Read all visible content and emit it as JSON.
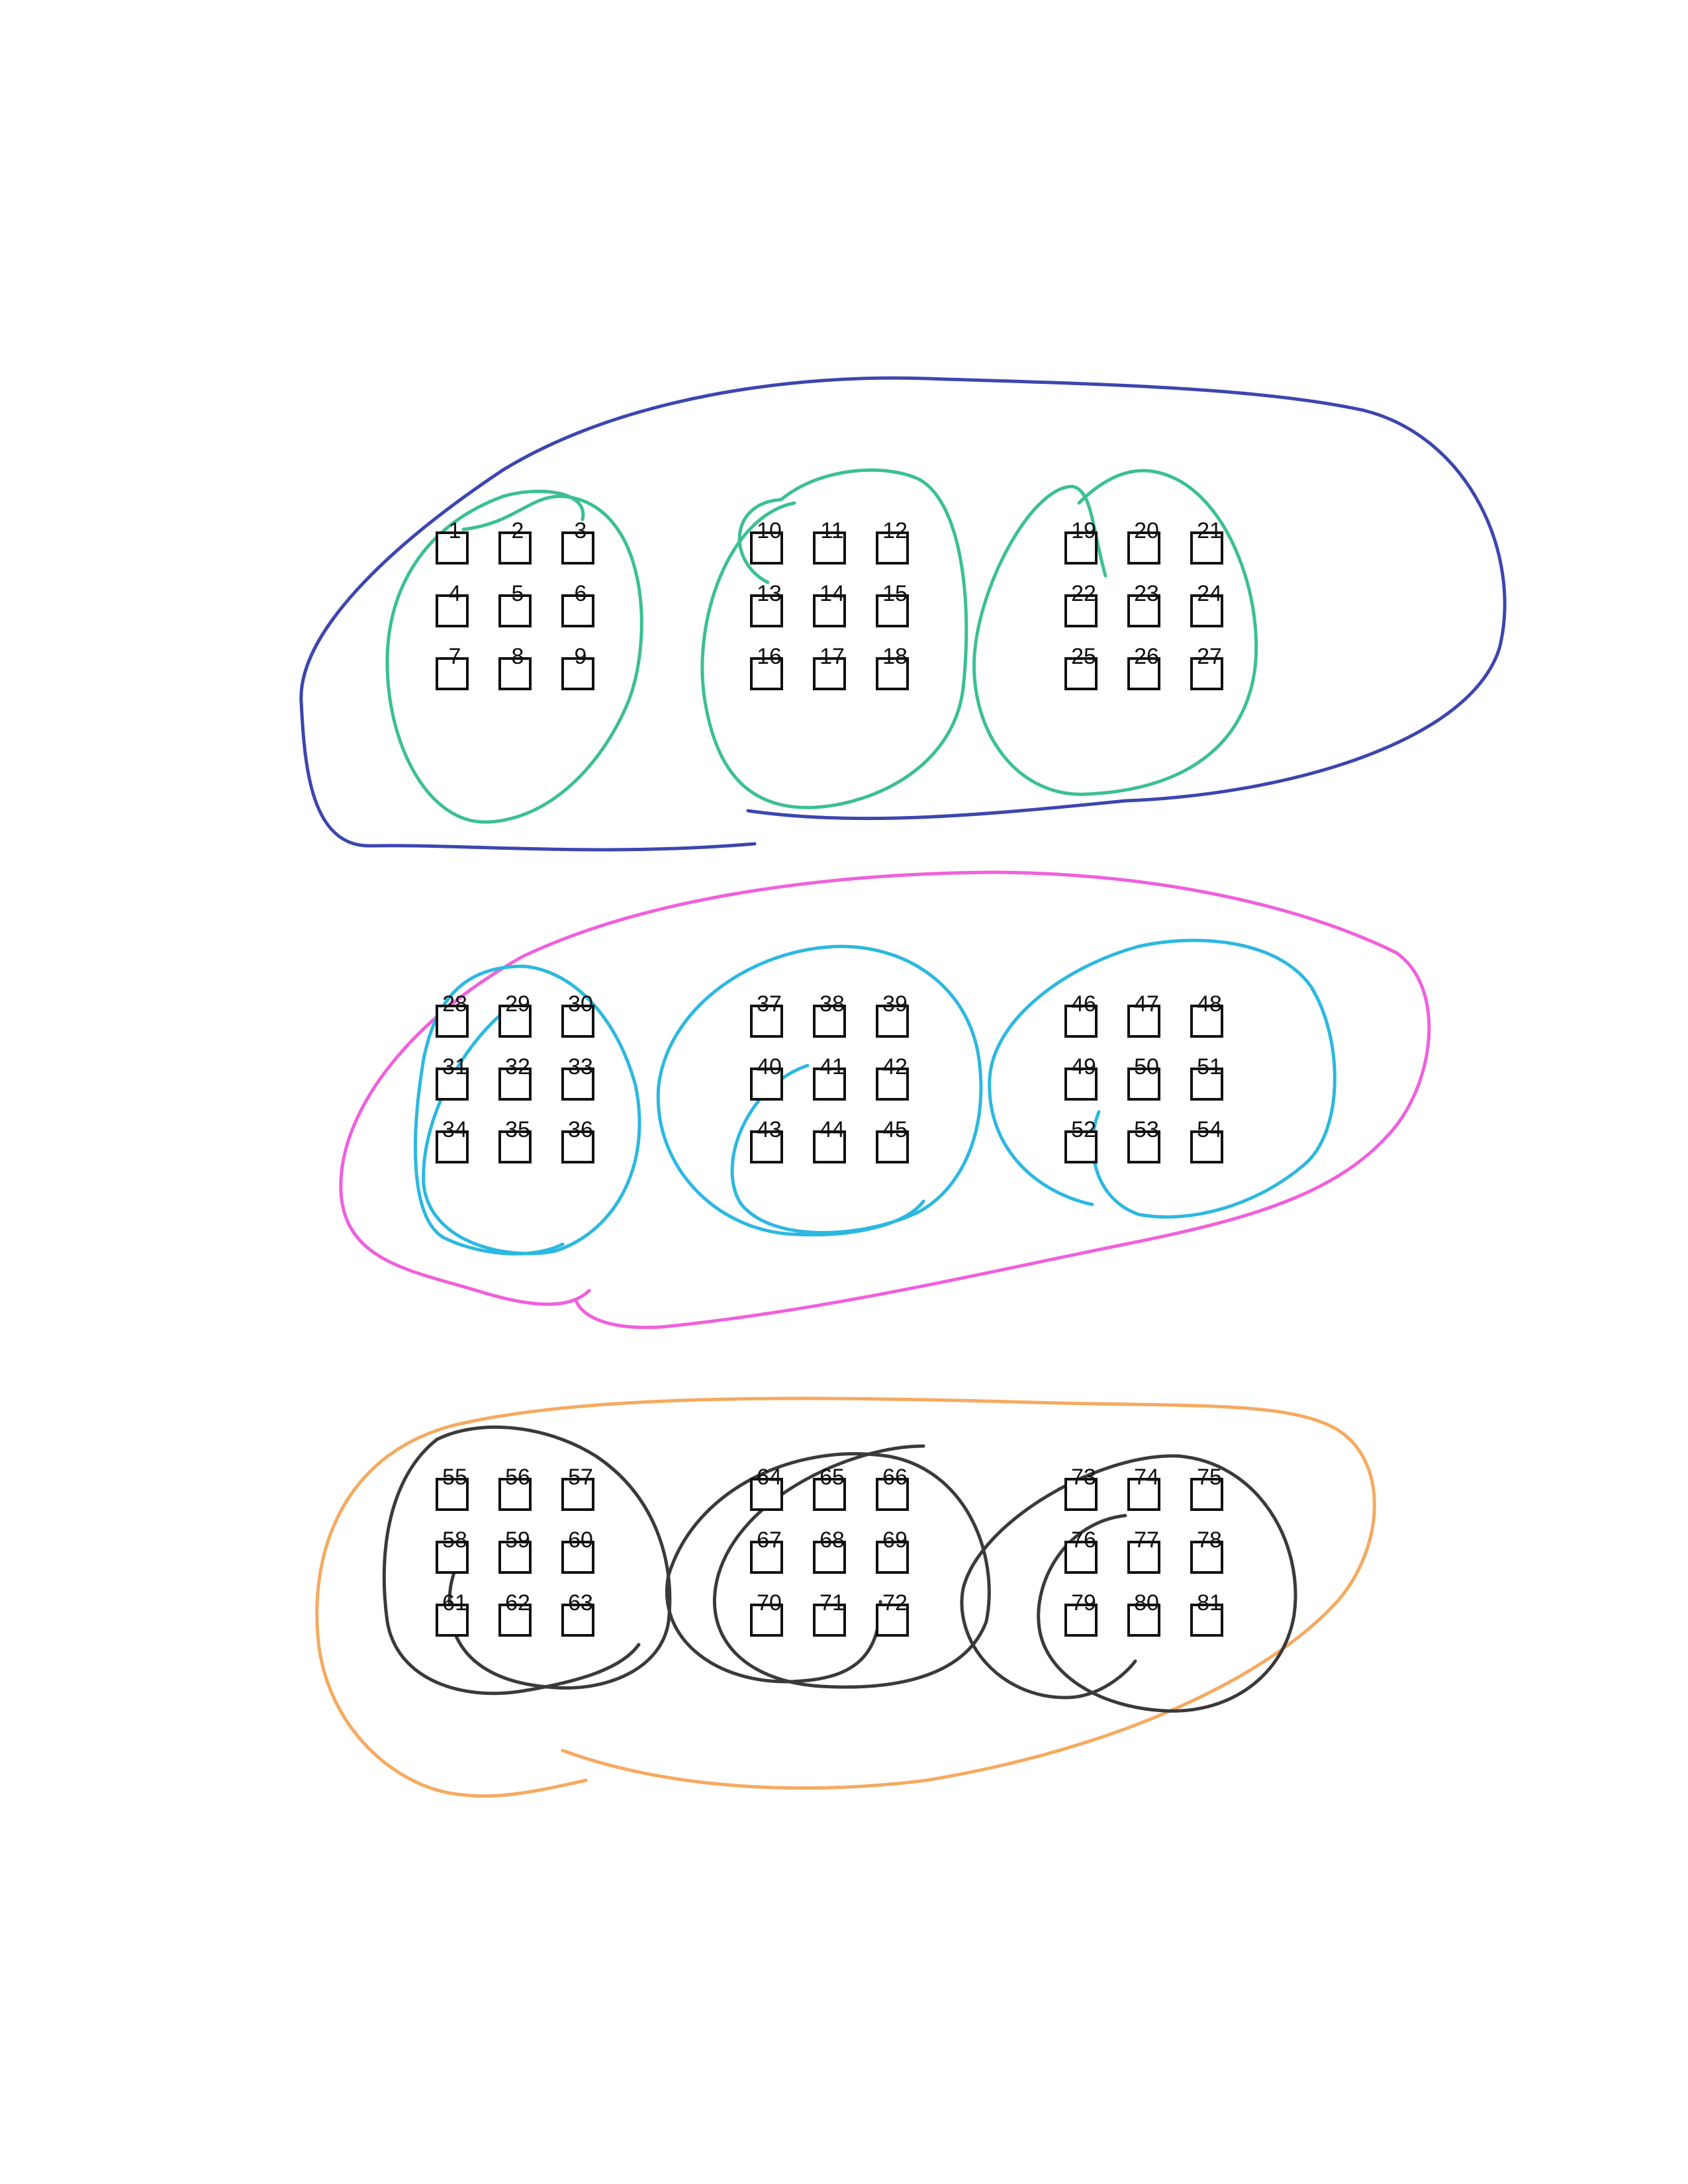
{
  "diagram": {
    "items": [
      {
        "group": 1,
        "cluster": 1,
        "labels": [
          "1",
          "2",
          "3",
          "4",
          "5",
          "6",
          "7",
          "8",
          "9"
        ]
      },
      {
        "group": 1,
        "cluster": 2,
        "labels": [
          "10",
          "11",
          "12",
          "13",
          "14",
          "15",
          "16",
          "17",
          "18"
        ]
      },
      {
        "group": 1,
        "cluster": 3,
        "labels": [
          "19",
          "20",
          "21",
          "22",
          "23",
          "24",
          "25",
          "26",
          "27"
        ]
      },
      {
        "group": 2,
        "cluster": 1,
        "labels": [
          "28",
          "29",
          "30",
          "31",
          "32",
          "33",
          "34",
          "35",
          "36"
        ]
      },
      {
        "group": 2,
        "cluster": 2,
        "labels": [
          "37",
          "38",
          "39",
          "40",
          "41",
          "42",
          "43",
          "44",
          "45"
        ]
      },
      {
        "group": 2,
        "cluster": 3,
        "labels": [
          "46",
          "47",
          "48",
          "49",
          "50",
          "51",
          "52",
          "53",
          "54"
        ]
      },
      {
        "group": 3,
        "cluster": 1,
        "labels": [
          "55",
          "56",
          "57",
          "58",
          "59",
          "60",
          "61",
          "62",
          "63"
        ]
      },
      {
        "group": 3,
        "cluster": 2,
        "labels": [
          "64",
          "65",
          "66",
          "67",
          "68",
          "69",
          "70",
          "71",
          "72"
        ]
      },
      {
        "group": 3,
        "cluster": 3,
        "labels": [
          "73",
          "74",
          "75",
          "76",
          "77",
          "78",
          "79",
          "80",
          "81"
        ]
      }
    ],
    "groups": [
      {
        "id": 1,
        "outer_color": "#3c46b0",
        "inner_color": "#3cbf95"
      },
      {
        "id": 2,
        "outer_color": "#f060dc",
        "inner_color": "#2cb8e0"
      },
      {
        "id": 3,
        "outer_color": "#f5aa60",
        "inner_color": "#3a3a3a"
      }
    ]
  }
}
